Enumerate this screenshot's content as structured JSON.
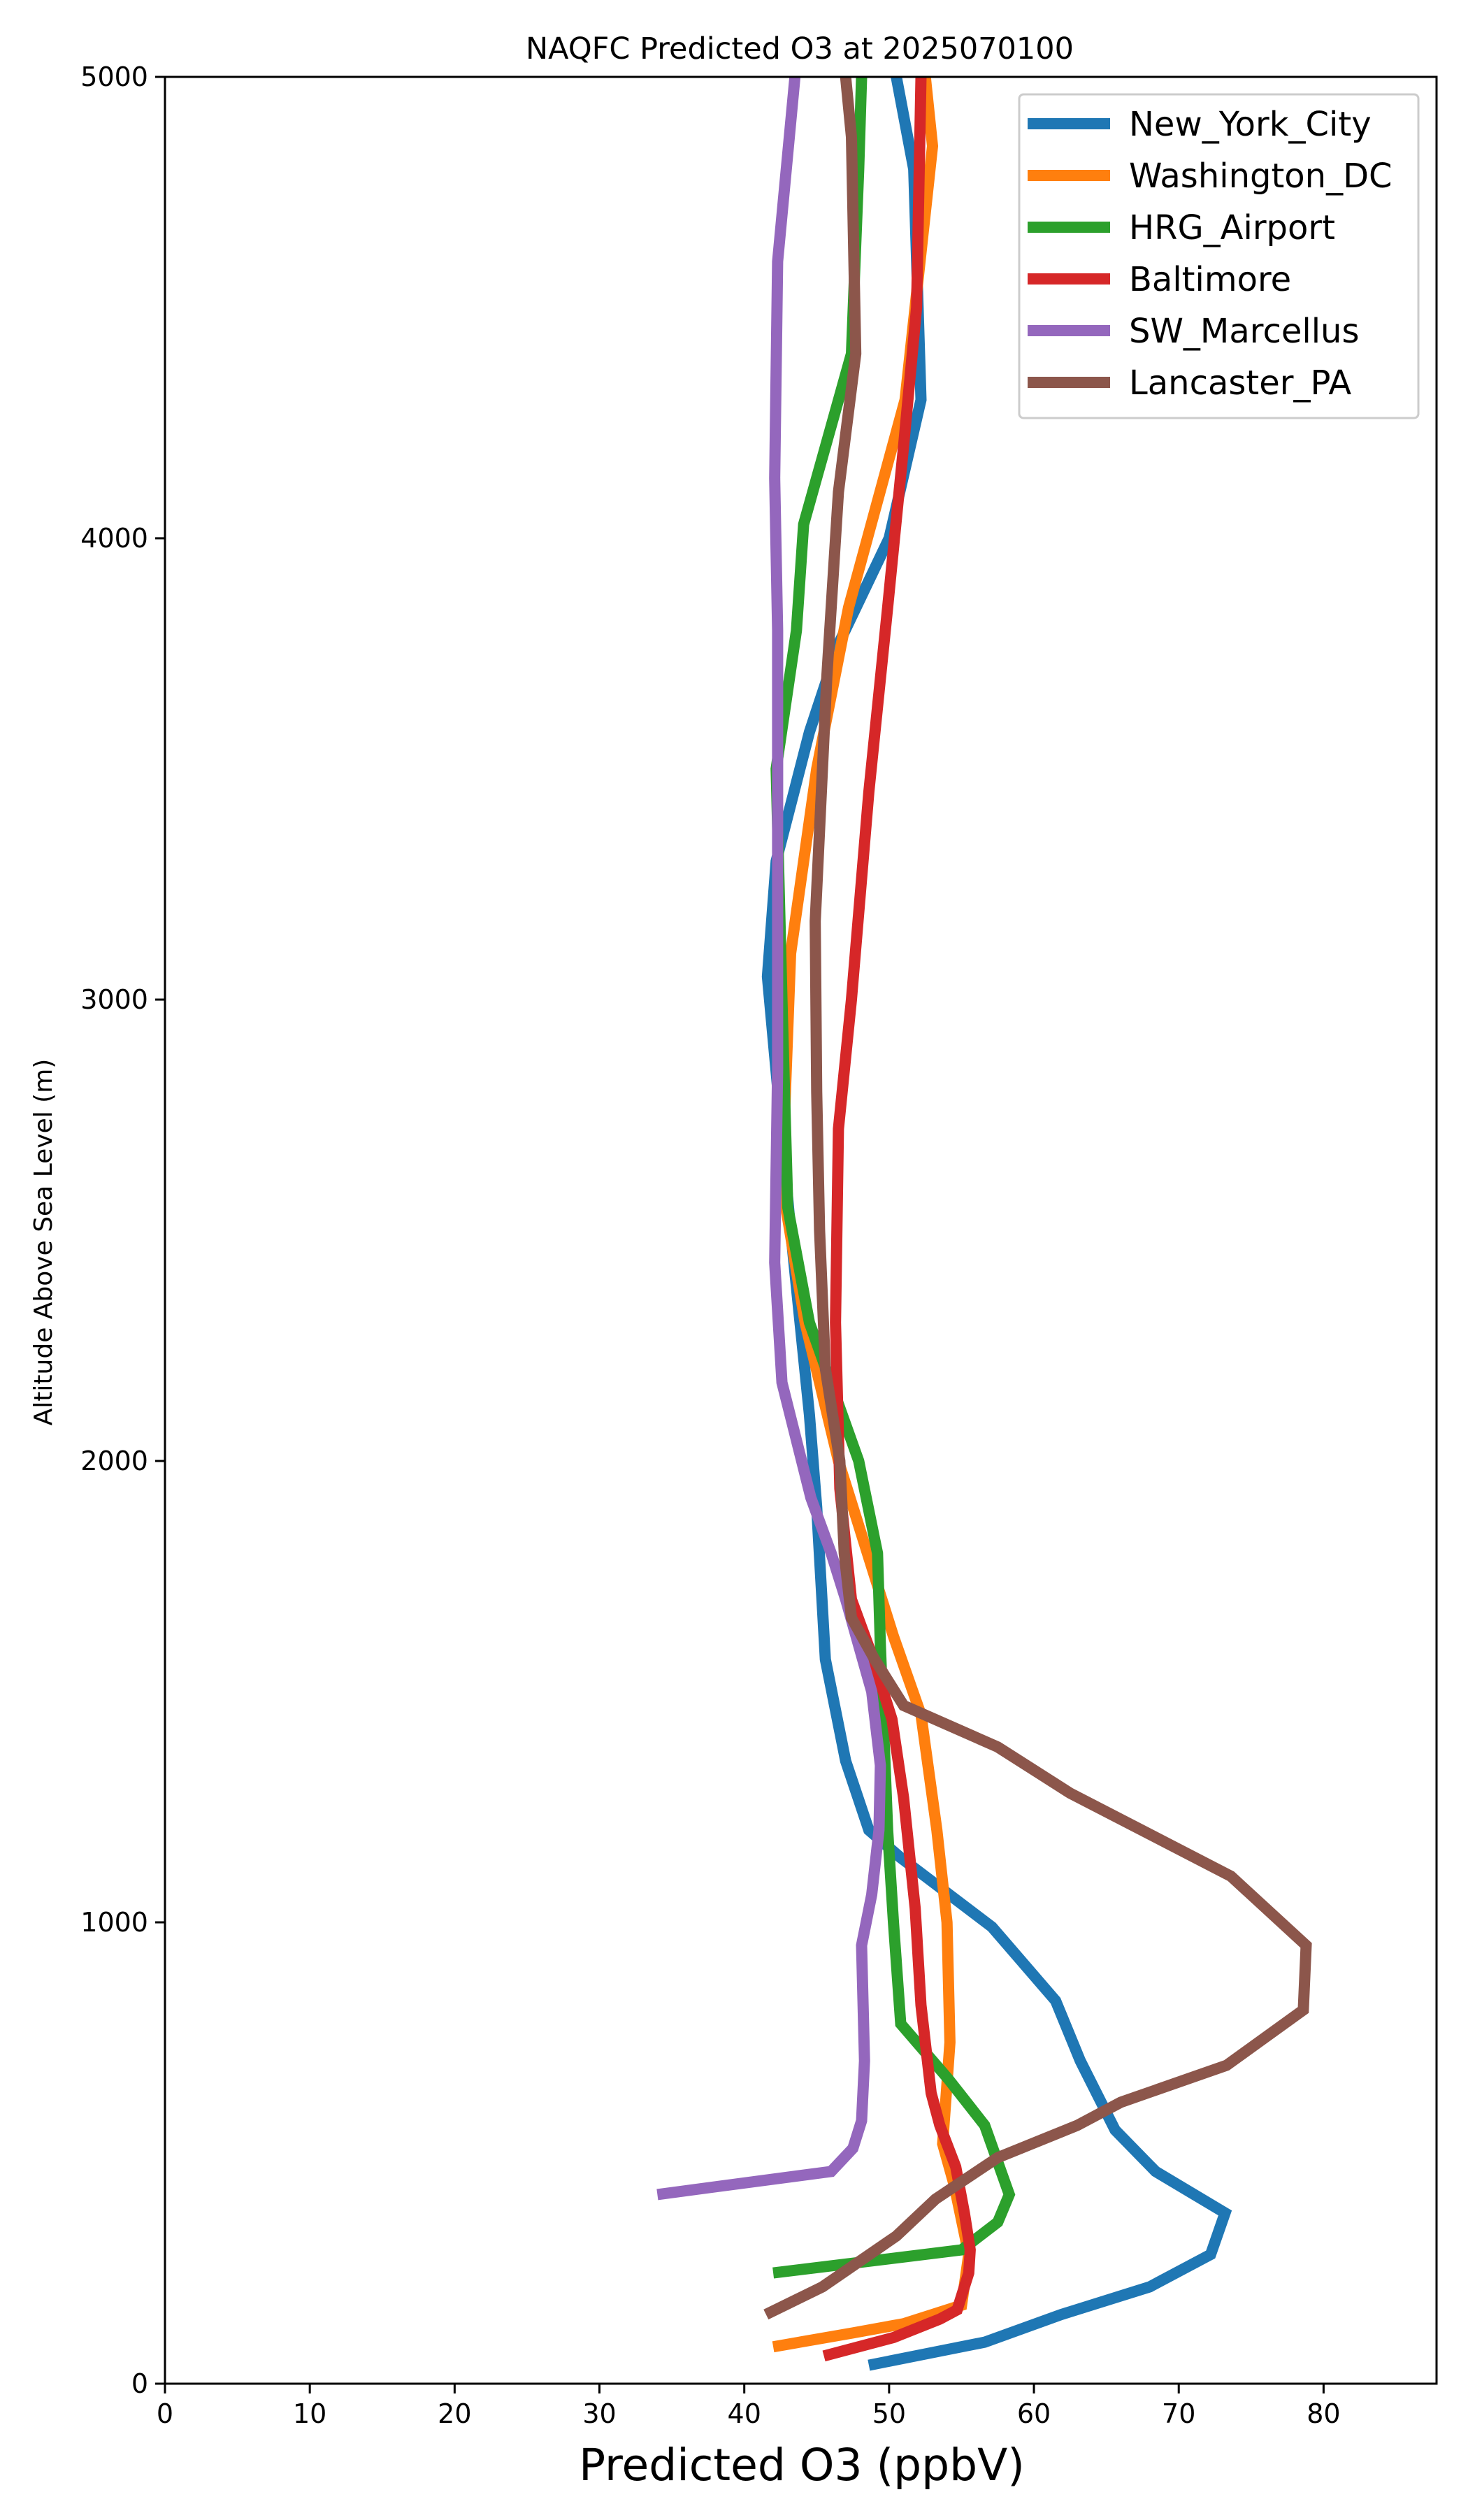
{
  "chart_data": {
    "type": "line",
    "title": "NAQFC Predicted O3 at 2025070100",
    "xlabel": "Predicted O3 (ppbV)",
    "ylabel": "Altitude Above Sea Level (m)",
    "xlim": [
      0,
      87.8
    ],
    "ylim": [
      0,
      5000
    ],
    "xticks": [
      "0",
      "10",
      "20",
      "30",
      "40",
      "50",
      "60",
      "70",
      "80"
    ],
    "yticks": [
      "0",
      "1000",
      "2000",
      "3000",
      "4000",
      "5000"
    ],
    "grid": false,
    "legend_position": "top-right",
    "series": [
      {
        "name": "New_York_City",
        "color": "#1f77b4",
        "points": [
          [
            48.6,
            40
          ],
          [
            56.6,
            90
          ],
          [
            61.9,
            150
          ],
          [
            68.0,
            210
          ],
          [
            72.2,
            280
          ],
          [
            73.2,
            370
          ],
          [
            68.4,
            460
          ],
          [
            65.6,
            550
          ],
          [
            63.2,
            700
          ],
          [
            61.5,
            830
          ],
          [
            57.1,
            990
          ],
          [
            50.8,
            1140
          ],
          [
            48.6,
            1200
          ],
          [
            47.0,
            1350
          ],
          [
            45.6,
            1570
          ],
          [
            45.0,
            1900
          ],
          [
            44.5,
            2100
          ],
          [
            43.2,
            2500
          ],
          [
            41.6,
            3050
          ],
          [
            42.2,
            3300
          ],
          [
            44.5,
            3580
          ],
          [
            46.5,
            3770
          ],
          [
            50.0,
            4000
          ],
          [
            52.2,
            4300
          ],
          [
            51.7,
            4800
          ],
          [
            50.5,
            5000
          ]
        ]
      },
      {
        "name": "Washington_DC",
        "color": "#ff7f0e",
        "points": [
          [
            42.0,
            80
          ],
          [
            47.5,
            110
          ],
          [
            51.0,
            130
          ],
          [
            55.0,
            170
          ],
          [
            55.5,
            280
          ],
          [
            54.5,
            430
          ],
          [
            53.7,
            520
          ],
          [
            54.2,
            740
          ],
          [
            54.0,
            1000
          ],
          [
            53.3,
            1200
          ],
          [
            52.2,
            1450
          ],
          [
            50.3,
            1620
          ],
          [
            48.6,
            1790
          ],
          [
            46.5,
            2000
          ],
          [
            44.2,
            2300
          ],
          [
            42.6,
            2600
          ],
          [
            43.2,
            3100
          ],
          [
            45.0,
            3500
          ],
          [
            47.2,
            3850
          ],
          [
            51.1,
            4300
          ],
          [
            53.0,
            4850
          ],
          [
            52.5,
            5000
          ]
        ]
      },
      {
        "name": "HRG_Airport",
        "color": "#2ca02c",
        "points": [
          [
            42.0,
            240
          ],
          [
            55.0,
            290
          ],
          [
            57.5,
            350
          ],
          [
            58.3,
            410
          ],
          [
            56.6,
            560
          ],
          [
            54.1,
            660
          ],
          [
            50.8,
            780
          ],
          [
            50.3,
            1000
          ],
          [
            49.9,
            1200
          ],
          [
            49.4,
            1600
          ],
          [
            49.2,
            1800
          ],
          [
            47.9,
            2000
          ],
          [
            44.5,
            2300
          ],
          [
            43.0,
            2550
          ],
          [
            42.6,
            3000
          ],
          [
            42.2,
            3500
          ],
          [
            43.6,
            3800
          ],
          [
            44.1,
            4030
          ],
          [
            47.4,
            4400
          ],
          [
            47.9,
            4800
          ],
          [
            48.1,
            5000
          ]
        ]
      },
      {
        "name": "Baltimore",
        "color": "#d62728",
        "points": [
          [
            45.5,
            60
          ],
          [
            50.3,
            100
          ],
          [
            53.5,
            140
          ],
          [
            54.7,
            160
          ],
          [
            55.5,
            240
          ],
          [
            55.6,
            290
          ],
          [
            55.2,
            370
          ],
          [
            54.6,
            470
          ],
          [
            53.5,
            560
          ],
          [
            52.9,
            630
          ],
          [
            52.2,
            820
          ],
          [
            51.8,
            1030
          ],
          [
            51.0,
            1270
          ],
          [
            50.2,
            1440
          ],
          [
            48.8,
            1580
          ],
          [
            47.4,
            1700
          ],
          [
            46.6,
            1940
          ],
          [
            46.3,
            2300
          ],
          [
            46.5,
            2720
          ],
          [
            47.4,
            3000
          ],
          [
            48.6,
            3450
          ],
          [
            49.9,
            3850
          ],
          [
            51.0,
            4200
          ],
          [
            51.9,
            4500
          ],
          [
            52.2,
            5000
          ]
        ]
      },
      {
        "name": "SW_Marcellus",
        "color": "#9467bd",
        "points": [
          [
            34.0,
            410
          ],
          [
            46.0,
            460
          ],
          [
            47.5,
            510
          ],
          [
            48.1,
            570
          ],
          [
            48.3,
            700
          ],
          [
            48.1,
            950
          ],
          [
            48.8,
            1060
          ],
          [
            49.3,
            1200
          ],
          [
            49.4,
            1340
          ],
          [
            48.8,
            1500
          ],
          [
            47.0,
            1700
          ],
          [
            46.0,
            1800
          ],
          [
            44.6,
            1920
          ],
          [
            42.6,
            2170
          ],
          [
            42.1,
            2430
          ],
          [
            42.3,
            2850
          ],
          [
            42.3,
            3800
          ],
          [
            42.1,
            4130
          ],
          [
            42.3,
            4600
          ],
          [
            43.5,
            5000
          ]
        ]
      },
      {
        "name": "Lancaster_PA",
        "color": "#8c564b",
        "points": [
          [
            41.5,
            150
          ],
          [
            45.4,
            210
          ],
          [
            50.5,
            320
          ],
          [
            53.2,
            400
          ],
          [
            57.5,
            490
          ],
          [
            63.0,
            560
          ],
          [
            66.0,
            610
          ],
          [
            73.3,
            690
          ],
          [
            78.6,
            810
          ],
          [
            78.8,
            950
          ],
          [
            73.6,
            1100
          ],
          [
            62.5,
            1280
          ],
          [
            57.5,
            1380
          ],
          [
            51.0,
            1470
          ],
          [
            49.0,
            1570
          ],
          [
            47.4,
            1660
          ],
          [
            46.9,
            1800
          ],
          [
            46.6,
            2000
          ],
          [
            45.6,
            2200
          ],
          [
            45.2,
            2500
          ],
          [
            45.0,
            2800
          ],
          [
            44.9,
            3170
          ],
          [
            45.7,
            3700
          ],
          [
            46.5,
            4100
          ],
          [
            47.7,
            4400
          ],
          [
            47.4,
            4870
          ],
          [
            47.0,
            5000
          ]
        ]
      }
    ]
  }
}
